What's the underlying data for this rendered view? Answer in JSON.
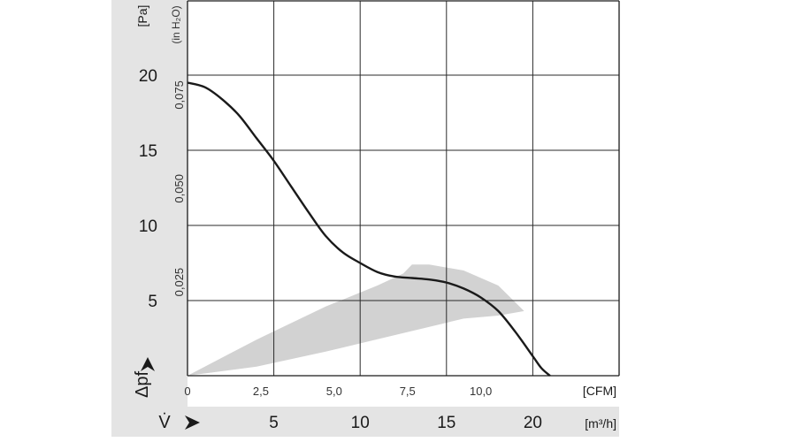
{
  "chart_data": {
    "type": "line",
    "title": "",
    "axes": {
      "x_primary": {
        "symbol": "V̇",
        "unit": "[m³/h]",
        "ticks": [
          5,
          10,
          15,
          20
        ],
        "tick_labels": [
          "5",
          "10",
          "15",
          "20"
        ]
      },
      "x_secondary": {
        "unit": "[CFM]",
        "ticks": [
          0,
          2.5,
          5.0,
          7.5,
          10.0
        ],
        "tick_labels": [
          "0",
          "2,5",
          "5,0",
          "7,5",
          "10,0"
        ]
      },
      "y_primary": {
        "symbol": "Δpf",
        "unit": "[Pa]",
        "ticks": [
          5,
          10,
          15,
          20
        ],
        "tick_labels": [
          "5",
          "10",
          "15",
          "20"
        ]
      },
      "y_secondary": {
        "unit": "(in H₂O)",
        "ticks": [
          0.025,
          0.05,
          0.075
        ],
        "tick_labels": [
          "0,025",
          "0,050",
          "0,075"
        ]
      }
    },
    "xlim": [
      0,
      25
    ],
    "ylim": [
      0,
      25
    ],
    "grid": true,
    "series": [
      {
        "x": [
          0,
          1,
          2,
          3,
          4,
          5,
          6,
          7,
          8,
          9,
          10,
          11,
          12,
          13,
          14,
          15,
          16,
          17,
          18,
          19,
          20,
          20.5,
          21.0
        ],
        "y": [
          19.5,
          19.2,
          18.4,
          17.3,
          15.8,
          14.3,
          12.6,
          10.9,
          9.3,
          8.2,
          7.5,
          6.9,
          6.6,
          6.5,
          6.4,
          6.2,
          5.8,
          5.2,
          4.3,
          2.9,
          1.3,
          0.5,
          0
        ]
      }
    ],
    "operating_range": {
      "upper": [
        [
          0,
          0
        ],
        [
          4,
          2.4
        ],
        [
          8,
          4.6
        ],
        [
          11,
          6.0
        ],
        [
          12.5,
          6.8
        ],
        [
          13,
          7.4
        ],
        [
          14,
          7.4
        ],
        [
          16,
          7.0
        ],
        [
          18,
          6.0
        ],
        [
          19.5,
          4.3
        ]
      ],
      "lower": [
        [
          19.5,
          4.3
        ],
        [
          18,
          4.0
        ],
        [
          16,
          3.8
        ],
        [
          12,
          2.7
        ],
        [
          8,
          1.6
        ],
        [
          4,
          0.6
        ],
        [
          0,
          0
        ]
      ]
    }
  }
}
